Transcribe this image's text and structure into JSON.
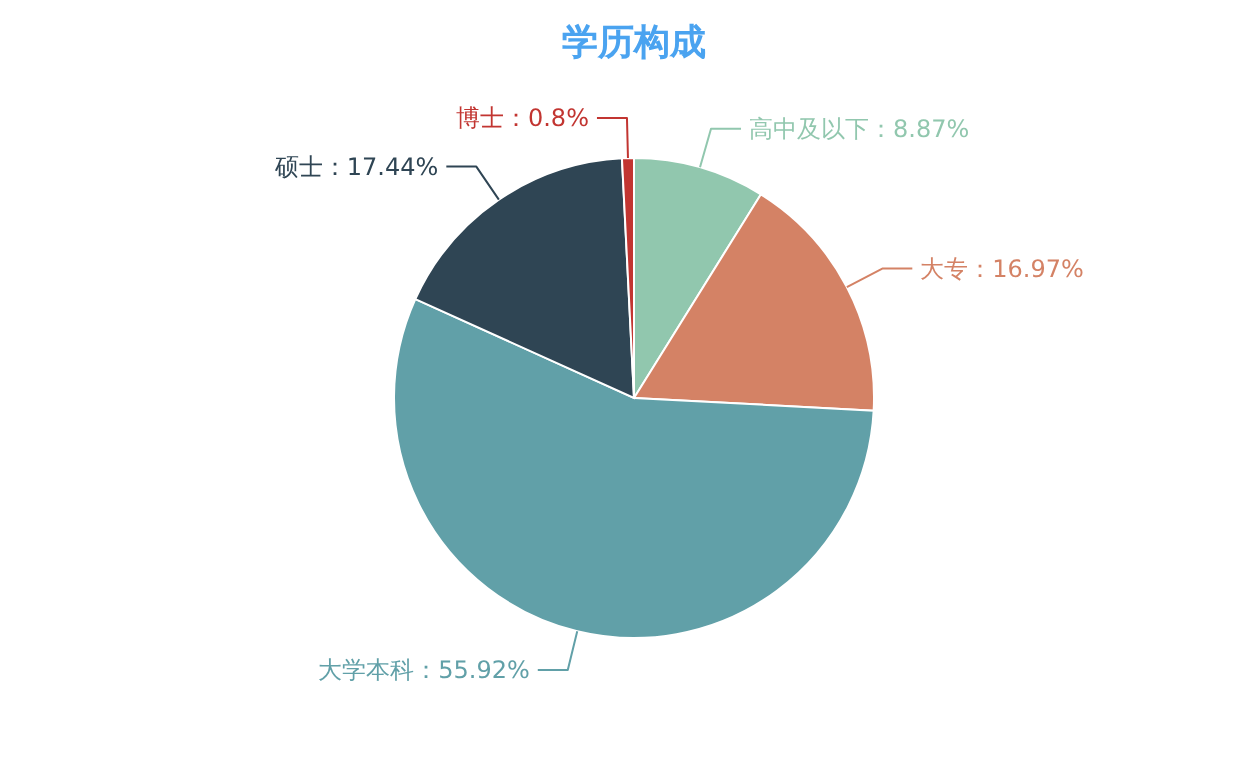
{
  "chart_data": {
    "type": "pie",
    "title": "学历构成",
    "categories": [
      "高中及以下",
      "大专",
      "大学本科",
      "硕士",
      "博士"
    ],
    "values": [
      8.87,
      16.97,
      55.92,
      17.44,
      0.8
    ],
    "colors": [
      "#91c7ae",
      "#d48265",
      "#61a0a8",
      "#2f4554",
      "#c23531"
    ],
    "value_labels": [
      "8.87%",
      "16.97%",
      "55.92%",
      "17.44%",
      "0.8%"
    ]
  }
}
